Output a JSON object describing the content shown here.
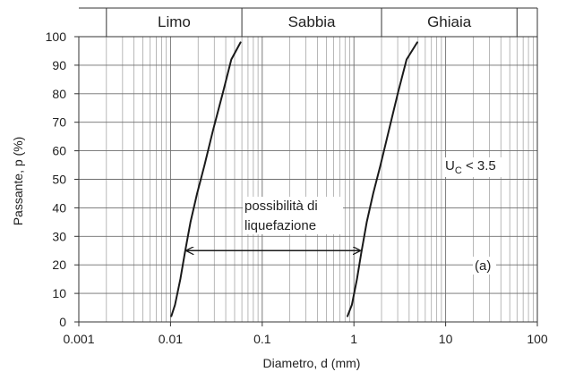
{
  "chart_data": {
    "type": "line",
    "xscale": "log",
    "xlim": [
      0.001,
      100
    ],
    "ylim": [
      0,
      100
    ],
    "xlabel": "Diametro, d (mm)",
    "ylabel": "Passante, p (%)",
    "xticks": [
      {
        "value": 0.001,
        "label": "0.001"
      },
      {
        "value": 0.01,
        "label": "0.01"
      },
      {
        "value": 0.1,
        "label": "0.1"
      },
      {
        "value": 1,
        "label": "1"
      },
      {
        "value": 10,
        "label": "10"
      },
      {
        "value": 100,
        "label": "100"
      }
    ],
    "yticks": [
      0,
      10,
      20,
      30,
      40,
      50,
      60,
      70,
      80,
      90,
      100
    ],
    "grid": true,
    "bands": [
      {
        "label": "Limo",
        "from": 0.002,
        "to": 0.06
      },
      {
        "label": "Sabbia",
        "from": 0.06,
        "to": 2
      },
      {
        "label": "Ghiaia",
        "from": 2,
        "to": 60
      }
    ],
    "series": [
      {
        "points": [
          [
            0.0102,
            2
          ],
          [
            0.0112,
            6
          ],
          [
            0.0128,
            15
          ],
          [
            0.0143,
            24
          ],
          [
            0.0165,
            35
          ],
          [
            0.0195,
            45
          ],
          [
            0.0235,
            55
          ],
          [
            0.029,
            67
          ],
          [
            0.037,
            80
          ],
          [
            0.046,
            92
          ],
          [
            0.058,
            98
          ]
        ]
      },
      {
        "points": [
          [
            0.85,
            2
          ],
          [
            0.95,
            6
          ],
          [
            1.08,
            15
          ],
          [
            1.2,
            24
          ],
          [
            1.38,
            35
          ],
          [
            1.62,
            45
          ],
          [
            1.95,
            55
          ],
          [
            2.4,
            67
          ],
          [
            3.0,
            80
          ],
          [
            3.75,
            92
          ],
          [
            4.9,
            98
          ]
        ]
      }
    ],
    "annotations": [
      {
        "text_lines": [
          "possibilità di",
          "liquefazione"
        ],
        "arrow": {
          "from": 0.0143,
          "to": 1.22,
          "y": 25
        }
      },
      {
        "text_main": "U",
        "text_sub": "C",
        "text_rest": " < 3.5"
      },
      {
        "text": "(a)"
      }
    ]
  }
}
